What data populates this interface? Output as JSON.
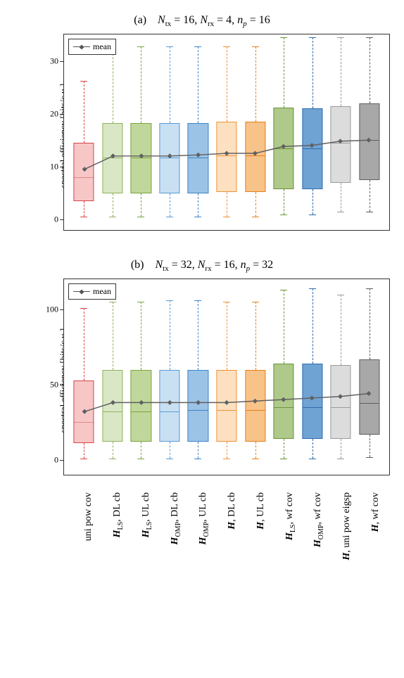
{
  "legend_label": "mean",
  "mean_line_color": "#606060",
  "panels": [
    {
      "title_letter": "(a)",
      "title_params": "N_tx = 16, N_rx = 4, n_p = 16",
      "ylabel": "spectral efficiency [bits/c.u.]",
      "ymin": -2,
      "ymax": 35,
      "yticks": [
        0,
        10,
        20,
        30
      ],
      "series": [
        {
          "label_html": "uni pow cov",
          "fill": "#f7c7c7",
          "stroke": "#d84545",
          "q1": 3.5,
          "median": 8.0,
          "q3": 14.5,
          "lo": 0.5,
          "hi": 26.2,
          "mean": 9.5,
          "median_dotted": true
        },
        {
          "label_html": "<span class=\"bold-italic\">H</span><span class=\"sub\">LS</span>, DL cb",
          "fill": "#d9e7c6",
          "stroke": "#8fb35c",
          "q1": 5.0,
          "median": 11.8,
          "q3": 18.2,
          "lo": 0.5,
          "hi": 32.8,
          "mean": 12.0
        },
        {
          "label_html": "<span class=\"bold-italic\">H</span><span class=\"sub\">LS</span>, UL cb",
          "fill": "#c0d79b",
          "stroke": "#7ba43e",
          "q1": 5.0,
          "median": 11.8,
          "q3": 18.2,
          "lo": 0.5,
          "hi": 32.8,
          "mean": 12.0
        },
        {
          "label_html": "<span class=\"bold-italic\">H</span><span class=\"sub\">OMP</span>, DL cb",
          "fill": "#c9dff2",
          "stroke": "#5a9bd4",
          "q1": 5.0,
          "median": 11.8,
          "q3": 18.3,
          "lo": 0.5,
          "hi": 32.8,
          "mean": 12.0
        },
        {
          "label_html": "<span class=\"bold-italic\">H</span><span class=\"sub\">OMP</span>, UL cb",
          "fill": "#9bc3e6",
          "stroke": "#3d84c6",
          "q1": 5.0,
          "median": 11.8,
          "q3": 18.3,
          "lo": 0.5,
          "hi": 32.8,
          "mean": 12.2
        },
        {
          "label_html": "<span class=\"bold-italic\">H</span>, DL cb",
          "fill": "#fce0bf",
          "stroke": "#ee9336",
          "q1": 5.2,
          "median": 12.2,
          "q3": 18.5,
          "lo": 0.5,
          "hi": 32.8,
          "mean": 12.5
        },
        {
          "label_html": "<span class=\"bold-italic\">H</span>, UL cb",
          "fill": "#f7c389",
          "stroke": "#e6801a",
          "q1": 5.2,
          "median": 12.2,
          "q3": 18.5,
          "lo": 0.5,
          "hi": 32.8,
          "mean": 12.5
        },
        {
          "label_html": "<span class=\"bold-italic\">H</span><span class=\"sub\">LS</span>, wf cov",
          "fill": "#aec98a",
          "stroke": "#6b9339",
          "q1": 5.8,
          "median": 13.5,
          "q3": 21.2,
          "lo": 1.0,
          "hi": 34.5,
          "mean": 13.8
        },
        {
          "label_html": "<span class=\"bold-italic\">H</span><span class=\"sub\">OMP</span>, wf cov",
          "fill": "#6fa3d4",
          "stroke": "#2f6bab",
          "q1": 5.8,
          "median": 13.5,
          "q3": 21.0,
          "lo": 1.0,
          "hi": 34.5,
          "mean": 14.0
        },
        {
          "label_html": "<span class=\"bold-italic\">H</span>, uni pow eigsp",
          "fill": "#dcdcdc",
          "stroke": "#9a9a9a",
          "q1": 7.0,
          "median": 14.5,
          "q3": 21.5,
          "lo": 1.5,
          "hi": 34.5,
          "mean": 14.8
        },
        {
          "label_html": "<span class=\"bold-italic\">H</span>, wf cov",
          "fill": "#a8a8a8",
          "stroke": "#5e5e5e",
          "q1": 7.5,
          "median": 15.0,
          "q3": 22.0,
          "lo": 1.5,
          "hi": 34.5,
          "mean": 15.0
        }
      ]
    },
    {
      "title_letter": "(b)",
      "title_params": "N_tx = 32, N_rx = 16, n_p = 32",
      "ylabel": "spectral efficiency [bits/c.u.]",
      "ymin": -10,
      "ymax": 120,
      "yticks": [
        0,
        50,
        100
      ],
      "series": [
        {
          "label_html": "uni pow cov",
          "fill": "#f7c7c7",
          "stroke": "#d84545",
          "q1": 11,
          "median": 25,
          "q3": 53,
          "lo": 1,
          "hi": 101,
          "mean": 32,
          "median_dotted": true
        },
        {
          "label_html": "<span class=\"bold-italic\">H</span><span class=\"sub\">LS</span>, DL cb",
          "fill": "#d9e7c6",
          "stroke": "#8fb35c",
          "q1": 12,
          "median": 32,
          "q3": 60,
          "lo": 1,
          "hi": 105,
          "mean": 38
        },
        {
          "label_html": "<span class=\"bold-italic\">H</span><span class=\"sub\">LS</span>, UL cb",
          "fill": "#c0d79b",
          "stroke": "#7ba43e",
          "q1": 12,
          "median": 32,
          "q3": 60,
          "lo": 1,
          "hi": 105,
          "mean": 38
        },
        {
          "label_html": "<span class=\"bold-italic\">H</span><span class=\"sub\">OMP</span>, DL cb",
          "fill": "#c9dff2",
          "stroke": "#5a9bd4",
          "q1": 12,
          "median": 32,
          "q3": 60,
          "lo": 1,
          "hi": 106,
          "mean": 38
        },
        {
          "label_html": "<span class=\"bold-italic\">H</span><span class=\"sub\">OMP</span>, UL cb",
          "fill": "#9bc3e6",
          "stroke": "#3d84c6",
          "q1": 12,
          "median": 33,
          "q3": 60,
          "lo": 1,
          "hi": 106,
          "mean": 38
        },
        {
          "label_html": "<span class=\"bold-italic\">H</span>, DL cb",
          "fill": "#fce0bf",
          "stroke": "#ee9336",
          "q1": 12,
          "median": 33,
          "q3": 60,
          "lo": 1,
          "hi": 105,
          "mean": 38
        },
        {
          "label_html": "<span class=\"bold-italic\">H</span>, UL cb",
          "fill": "#f7c389",
          "stroke": "#e6801a",
          "q1": 12,
          "median": 33,
          "q3": 60,
          "lo": 1,
          "hi": 105,
          "mean": 39
        },
        {
          "label_html": "<span class=\"bold-italic\">H</span><span class=\"sub\">LS</span>, wf cov",
          "fill": "#aec98a",
          "stroke": "#6b9339",
          "q1": 14,
          "median": 35,
          "q3": 64,
          "lo": 1,
          "hi": 113,
          "mean": 40
        },
        {
          "label_html": "<span class=\"bold-italic\">H</span><span class=\"sub\">OMP</span>, wf cov",
          "fill": "#6fa3d4",
          "stroke": "#2f6bab",
          "q1": 14,
          "median": 35,
          "q3": 64,
          "lo": 1,
          "hi": 114,
          "mean": 41
        },
        {
          "label_html": "<span class=\"bold-italic\">H</span>, uni pow eigsp",
          "fill": "#dcdcdc",
          "stroke": "#9a9a9a",
          "q1": 14,
          "median": 35,
          "q3": 63,
          "lo": 1,
          "hi": 110,
          "mean": 42
        },
        {
          "label_html": "<span class=\"bold-italic\">H</span>, wf cov",
          "fill": "#a8a8a8",
          "stroke": "#5e5e5e",
          "q1": 17,
          "median": 38,
          "q3": 67,
          "lo": 2,
          "hi": 114,
          "mean": 44
        }
      ]
    }
  ]
}
